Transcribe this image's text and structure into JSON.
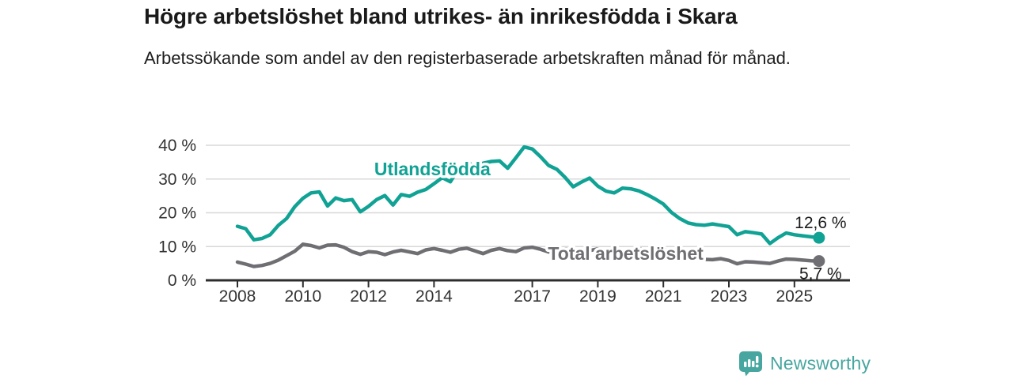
{
  "chart_data": {
    "type": "line",
    "title": "Högre arbetslöshet bland utrikes- än inrikesfödda i Skara",
    "subtitle": "Arbetssökande som andel av den registerbaserade arbetskraften månad för månad.",
    "x_unit": "year",
    "ylim": [
      0,
      40
    ],
    "grid": "horizontal",
    "legend": "inline-labels",
    "x": [
      2008,
      2008.25,
      2008.5,
      2008.75,
      2009,
      2009.25,
      2009.5,
      2009.75,
      2010,
      2010.25,
      2010.5,
      2010.75,
      2011,
      2011.25,
      2011.5,
      2011.75,
      2012,
      2012.25,
      2012.5,
      2012.75,
      2013,
      2013.25,
      2013.5,
      2013.75,
      2014,
      2014.25,
      2014.5,
      2014.75,
      2015,
      2015.25,
      2015.5,
      2015.75,
      2016,
      2016.25,
      2016.5,
      2016.75,
      2017,
      2017.25,
      2017.5,
      2017.75,
      2018,
      2018.25,
      2018.5,
      2018.75,
      2019,
      2019.25,
      2019.5,
      2019.75,
      2020,
      2020.25,
      2020.5,
      2020.75,
      2021,
      2021.25,
      2021.5,
      2021.75,
      2022,
      2022.25,
      2022.5,
      2022.75,
      2023,
      2023.25,
      2023.5,
      2023.75,
      2024,
      2024.25,
      2024.5,
      2024.75,
      2025,
      2025.25,
      2025.5,
      2025.75
    ],
    "series": [
      {
        "name": "Utlandsfödda",
        "color": "#10a294",
        "end_label": "12,6 %",
        "end_value": 12.6,
        "values": [
          16.0,
          15.3,
          12.0,
          12.4,
          13.5,
          16.3,
          18.3,
          21.8,
          24.3,
          25.9,
          26.2,
          22.0,
          24.4,
          23.6,
          23.9,
          20.3,
          21.9,
          23.9,
          25.1,
          22.3,
          25.4,
          24.9,
          26.1,
          26.9,
          28.6,
          30.4,
          29.2,
          33.1,
          35.1,
          33.7,
          34.7,
          35.2,
          35.4,
          33.2,
          36.3,
          39.5,
          38.9,
          36.6,
          34.0,
          32.9,
          30.5,
          27.7,
          29.1,
          30.3,
          27.9,
          26.4,
          25.9,
          27.3,
          27.1,
          26.5,
          25.4,
          24.1,
          22.6,
          20.1,
          18.3,
          17.0,
          16.5,
          16.3,
          16.7,
          16.3,
          15.9,
          13.5,
          14.4,
          14.1,
          13.7,
          10.9,
          12.6,
          14.0,
          13.5,
          13.2,
          12.9,
          12.6
        ]
      },
      {
        "name": "Total arbetslöshet",
        "color": "#6e6e73",
        "end_label": "5,7 %",
        "end_value": 5.7,
        "values": [
          5.4,
          4.8,
          4.1,
          4.4,
          5.0,
          6.0,
          7.3,
          8.6,
          10.7,
          10.3,
          9.6,
          10.4,
          10.5,
          9.8,
          8.5,
          7.7,
          8.5,
          8.3,
          7.6,
          8.4,
          8.9,
          8.4,
          7.9,
          9.0,
          9.4,
          8.9,
          8.3,
          9.2,
          9.5,
          8.7,
          7.9,
          8.9,
          9.4,
          8.8,
          8.5,
          9.6,
          9.8,
          9.2,
          8.4,
          8.9,
          9.3,
          8.6,
          7.8,
          8.8,
          9.3,
          8.8,
          8.0,
          8.6,
          9.0,
          9.4,
          8.8,
          8.9,
          9.1,
          8.5,
          7.6,
          7.0,
          6.5,
          6.2,
          6.1,
          6.4,
          5.9,
          4.9,
          5.5,
          5.4,
          5.2,
          5.0,
          5.7,
          6.3,
          6.2,
          6.0,
          5.8,
          5.7
        ]
      }
    ],
    "series_label_positions": [
      {
        "x": 2013.95,
        "y": 33.0
      },
      {
        "x": 2019.85,
        "y": 8.0
      }
    ],
    "y_ticks": [
      {
        "v": 0,
        "label": "0 %"
      },
      {
        "v": 10,
        "label": "10 %"
      },
      {
        "v": 20,
        "label": "20 %"
      },
      {
        "v": 30,
        "label": "30 %"
      },
      {
        "v": 40,
        "label": "40 %"
      }
    ],
    "x_ticks": [
      {
        "v": 2008,
        "label": "2008"
      },
      {
        "v": 2010,
        "label": "2010"
      },
      {
        "v": 2012,
        "label": "2012"
      },
      {
        "v": 2014,
        "label": "2014"
      },
      {
        "v": 2017,
        "label": "2017"
      },
      {
        "v": 2019,
        "label": "2019"
      },
      {
        "v": 2021,
        "label": "2021"
      },
      {
        "v": 2023,
        "label": "2023"
      },
      {
        "v": 2025,
        "label": "2025"
      }
    ]
  },
  "colors": {
    "accent_teal": "#10a294",
    "series_gray": "#6e6e73",
    "grid": "#d8d8d8",
    "axis": "#2d2d2d",
    "axis_text": "#333333",
    "value_label_text": "#1a1a1a",
    "brand": "#48a6a0"
  },
  "footer": {
    "brand": "Newsworthy",
    "logo_icon": "bar-chart-speech-bubble-icon"
  }
}
